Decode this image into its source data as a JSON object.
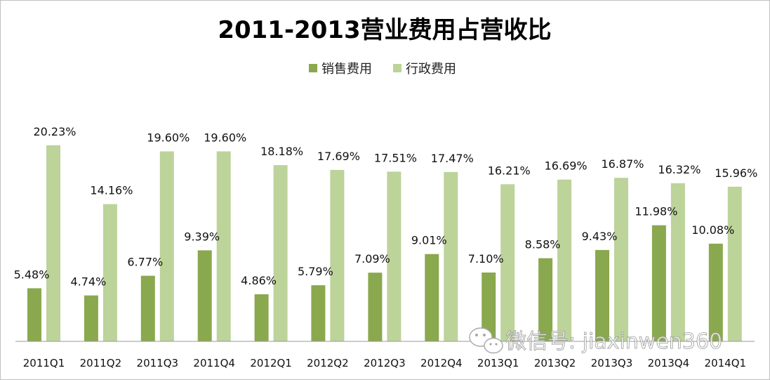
{
  "chart_data": {
    "type": "bar",
    "title": "2011-2013营业费用占营收比",
    "categories": [
      "2011Q1",
      "2011Q2",
      "2011Q3",
      "2011Q4",
      "2012Q1",
      "2012Q2",
      "2012Q3",
      "2012Q4",
      "2013Q1",
      "2013Q2",
      "2013Q3",
      "2013Q4",
      "2014Q1"
    ],
    "series": [
      {
        "name": "销售费用",
        "values": [
          5.48,
          4.74,
          6.77,
          9.39,
          4.86,
          5.79,
          7.09,
          9.01,
          7.1,
          8.58,
          9.43,
          11.98,
          10.08
        ],
        "labels": [
          "5.48%",
          "4.74%",
          "6.77%",
          "9.39%",
          "4.86%",
          "5.79%",
          "7.09%",
          "9.01%",
          "7.10%",
          "8.58%",
          "9.43%",
          "11.98%",
          "10.08%"
        ],
        "color": "#8aa84e"
      },
      {
        "name": "行政费用",
        "values": [
          20.23,
          14.16,
          19.6,
          19.6,
          18.18,
          17.69,
          17.51,
          17.47,
          16.21,
          16.69,
          16.87,
          16.32,
          15.96
        ],
        "labels": [
          "20.23%",
          "14.16%",
          "19.60%",
          "19.60%",
          "18.18%",
          "17.69%",
          "17.51%",
          "17.47%",
          "16.21%",
          "16.69%",
          "16.87%",
          "16.32%",
          "15.96%"
        ],
        "color": "#bcd39a"
      }
    ],
    "legend_position": "top-center",
    "grid": false
  },
  "watermark": {
    "text": "微信号: jiaxinwen360",
    "icon": "wechat-icon"
  }
}
